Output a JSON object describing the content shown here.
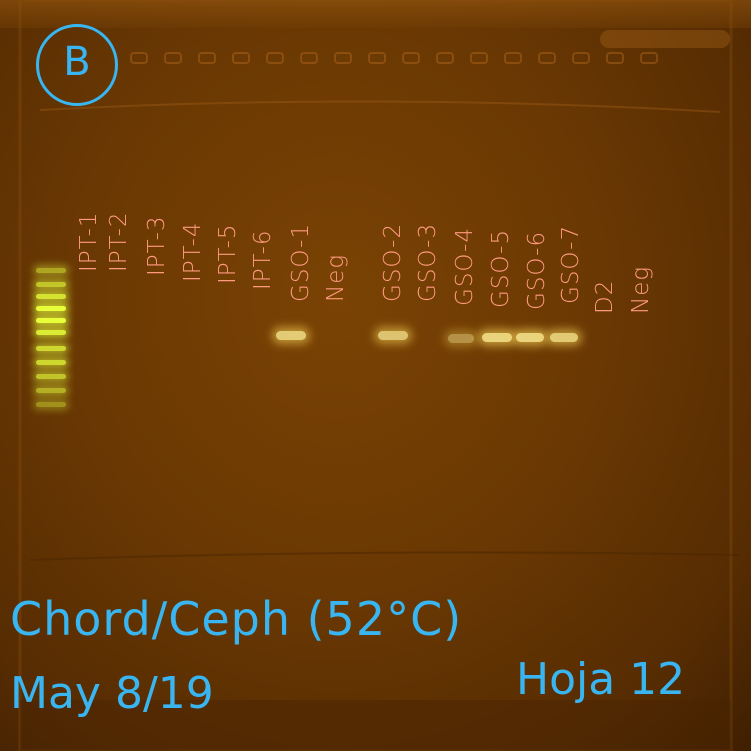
{
  "panel_label": "B",
  "lanes": [
    "IPT-1",
    "IPT-2",
    "IPT-3",
    "IPT-4",
    "IPT-5",
    "IPT-6",
    "GSO-1",
    "Neg",
    "GSO-2",
    "GSO-3",
    "GSO-4",
    "GSO-5",
    "GSO-6",
    "GSO-7",
    "D2",
    "Neg"
  ],
  "annotations": {
    "title": "Chord/Ceph (52°C)",
    "date": "May 8/19",
    "sheet": "Hoja 12"
  },
  "colors": {
    "gel": "#6a3803",
    "ink_blue": "#39b6f2",
    "ink_pink": "#ff9a80",
    "ladder_band": "#e8ff3a",
    "product_band": "#f7e48a"
  }
}
